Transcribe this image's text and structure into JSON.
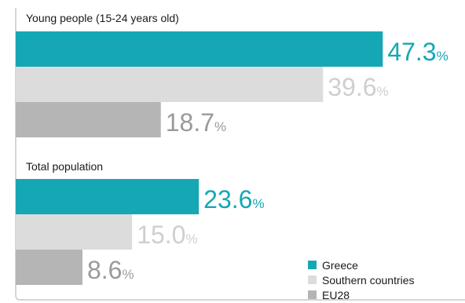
{
  "chart_data": {
    "type": "bar",
    "orientation": "horizontal",
    "unit": "%",
    "xlim": [
      0,
      50
    ],
    "groups": [
      {
        "title": "Young people (15-24 years old)",
        "values": [
          {
            "series": "Greece",
            "value": 47.3,
            "label": "47.3"
          },
          {
            "series": "Southern countries",
            "value": 39.6,
            "label": "39.6"
          },
          {
            "series": "EU28",
            "value": 18.7,
            "label": "18.7"
          }
        ]
      },
      {
        "title": "Total population",
        "values": [
          {
            "series": "Greece",
            "value": 23.6,
            "label": "23.6"
          },
          {
            "series": "Southern countries",
            "value": 15.0,
            "label": "15.0"
          },
          {
            "series": "EU28",
            "value": 8.6,
            "label": "8.6"
          }
        ]
      }
    ],
    "series": [
      {
        "name": "Greece",
        "color": "#16a7b5",
        "label_color": "#16a7b5"
      },
      {
        "name": "Southern countries",
        "color": "#dcdcdc",
        "label_color": "#cfcfcf"
      },
      {
        "name": "EU28",
        "color": "#b5b5b5",
        "label_color": "#9a9a9a"
      }
    ],
    "legend": {
      "placement": "bottom-right"
    },
    "grid": false
  }
}
